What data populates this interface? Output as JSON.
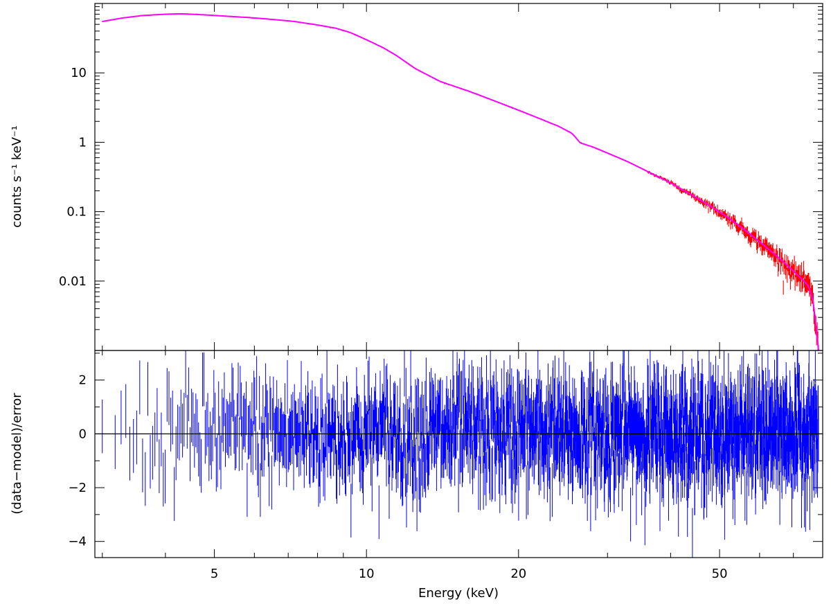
{
  "chart_data": [
    {
      "type": "line",
      "panel": "spectrum",
      "title": "",
      "xlabel": "",
      "ylabel": "counts s⁻¹ keV⁻¹",
      "x_scale": "log",
      "y_scale": "log",
      "xlim": [
        2.9,
        80
      ],
      "ylim": [
        0.001,
        100
      ],
      "y_ticks": [
        {
          "value": 10,
          "label": "10"
        },
        {
          "value": 1,
          "label": "1"
        },
        {
          "value": 0.1,
          "label": "0.1"
        },
        {
          "value": 0.01,
          "label": "0.01"
        }
      ],
      "grid": false,
      "legend": "none",
      "series": [
        {
          "role": "data",
          "color": "#ff0000",
          "x": [
            3.0,
            3.3,
            3.6,
            4.0,
            4.3,
            4.7,
            5.2,
            5.8,
            6.5,
            7.2,
            8.0,
            8.7,
            9.3,
            10.0,
            10.8,
            11.5,
            12.5,
            14,
            16,
            18,
            20,
            22,
            24,
            25.5,
            26,
            26.5,
            28,
            30,
            33,
            36,
            40,
            44,
            48,
            52,
            56,
            60,
            64,
            68,
            72,
            75,
            76.5,
            77.5,
            78.5
          ],
          "y": [
            55,
            62,
            67,
            70,
            71,
            69,
            66,
            63,
            59,
            55,
            49,
            44,
            38,
            30,
            23,
            17.5,
            11.5,
            7.5,
            5.4,
            3.9,
            2.9,
            2.2,
            1.7,
            1.35,
            1.15,
            0.98,
            0.86,
            0.7,
            0.52,
            0.38,
            0.26,
            0.175,
            0.12,
            0.082,
            0.055,
            0.037,
            0.025,
            0.017,
            0.0115,
            0.0085,
            0.0055,
            0.0025,
            0.001
          ],
          "scatter_band_from_x": 36
        },
        {
          "role": "model",
          "color": "#ff00ff",
          "x": [
            3.0,
            3.3,
            3.6,
            4.0,
            4.3,
            4.7,
            5.2,
            5.8,
            6.5,
            7.2,
            8.0,
            8.7,
            9.3,
            10.0,
            10.8,
            11.5,
            12.5,
            14,
            16,
            18,
            20,
            22,
            24,
            25.5,
            26,
            26.5,
            28,
            30,
            33,
            36,
            40,
            44,
            48,
            52,
            56,
            60,
            64,
            68,
            72,
            75,
            76.5,
            77.5,
            78.5
          ],
          "y": [
            55,
            62,
            67,
            70,
            71,
            69,
            66,
            63,
            59,
            55,
            49,
            44,
            38,
            30,
            23,
            17.5,
            11.5,
            7.5,
            5.4,
            3.9,
            2.9,
            2.2,
            1.7,
            1.35,
            1.15,
            0.98,
            0.86,
            0.7,
            0.52,
            0.38,
            0.26,
            0.175,
            0.12,
            0.082,
            0.055,
            0.037,
            0.025,
            0.017,
            0.0115,
            0.0085,
            0.0055,
            0.0025,
            0.001
          ]
        }
      ]
    },
    {
      "type": "scatter",
      "panel": "residuals",
      "title": "",
      "xlabel": "Energy (keV)",
      "ylabel": "(data−model)/error",
      "x_scale": "log",
      "y_scale": "linear",
      "xlim": [
        2.9,
        80
      ],
      "ylim": [
        -4.6,
        3.1
      ],
      "x_ticks": [
        {
          "value": 5,
          "label": "5"
        },
        {
          "value": 10,
          "label": "10"
        },
        {
          "value": 20,
          "label": "20"
        },
        {
          "value": 50,
          "label": "50"
        }
      ],
      "y_ticks": [
        {
          "value": 2,
          "label": "2"
        },
        {
          "value": 0,
          "label": "0"
        },
        {
          "value": -2,
          "label": "−2"
        },
        {
          "value": -4,
          "label": "−4"
        }
      ],
      "reference_line": 0,
      "grid": false,
      "legend": "none",
      "residual_spread": {
        "typical_sigma": 1,
        "min_observed": -4.6,
        "max_observed": 3.1
      },
      "series": [
        {
          "role": "residuals",
          "color": "#0000ff"
        }
      ]
    }
  ]
}
